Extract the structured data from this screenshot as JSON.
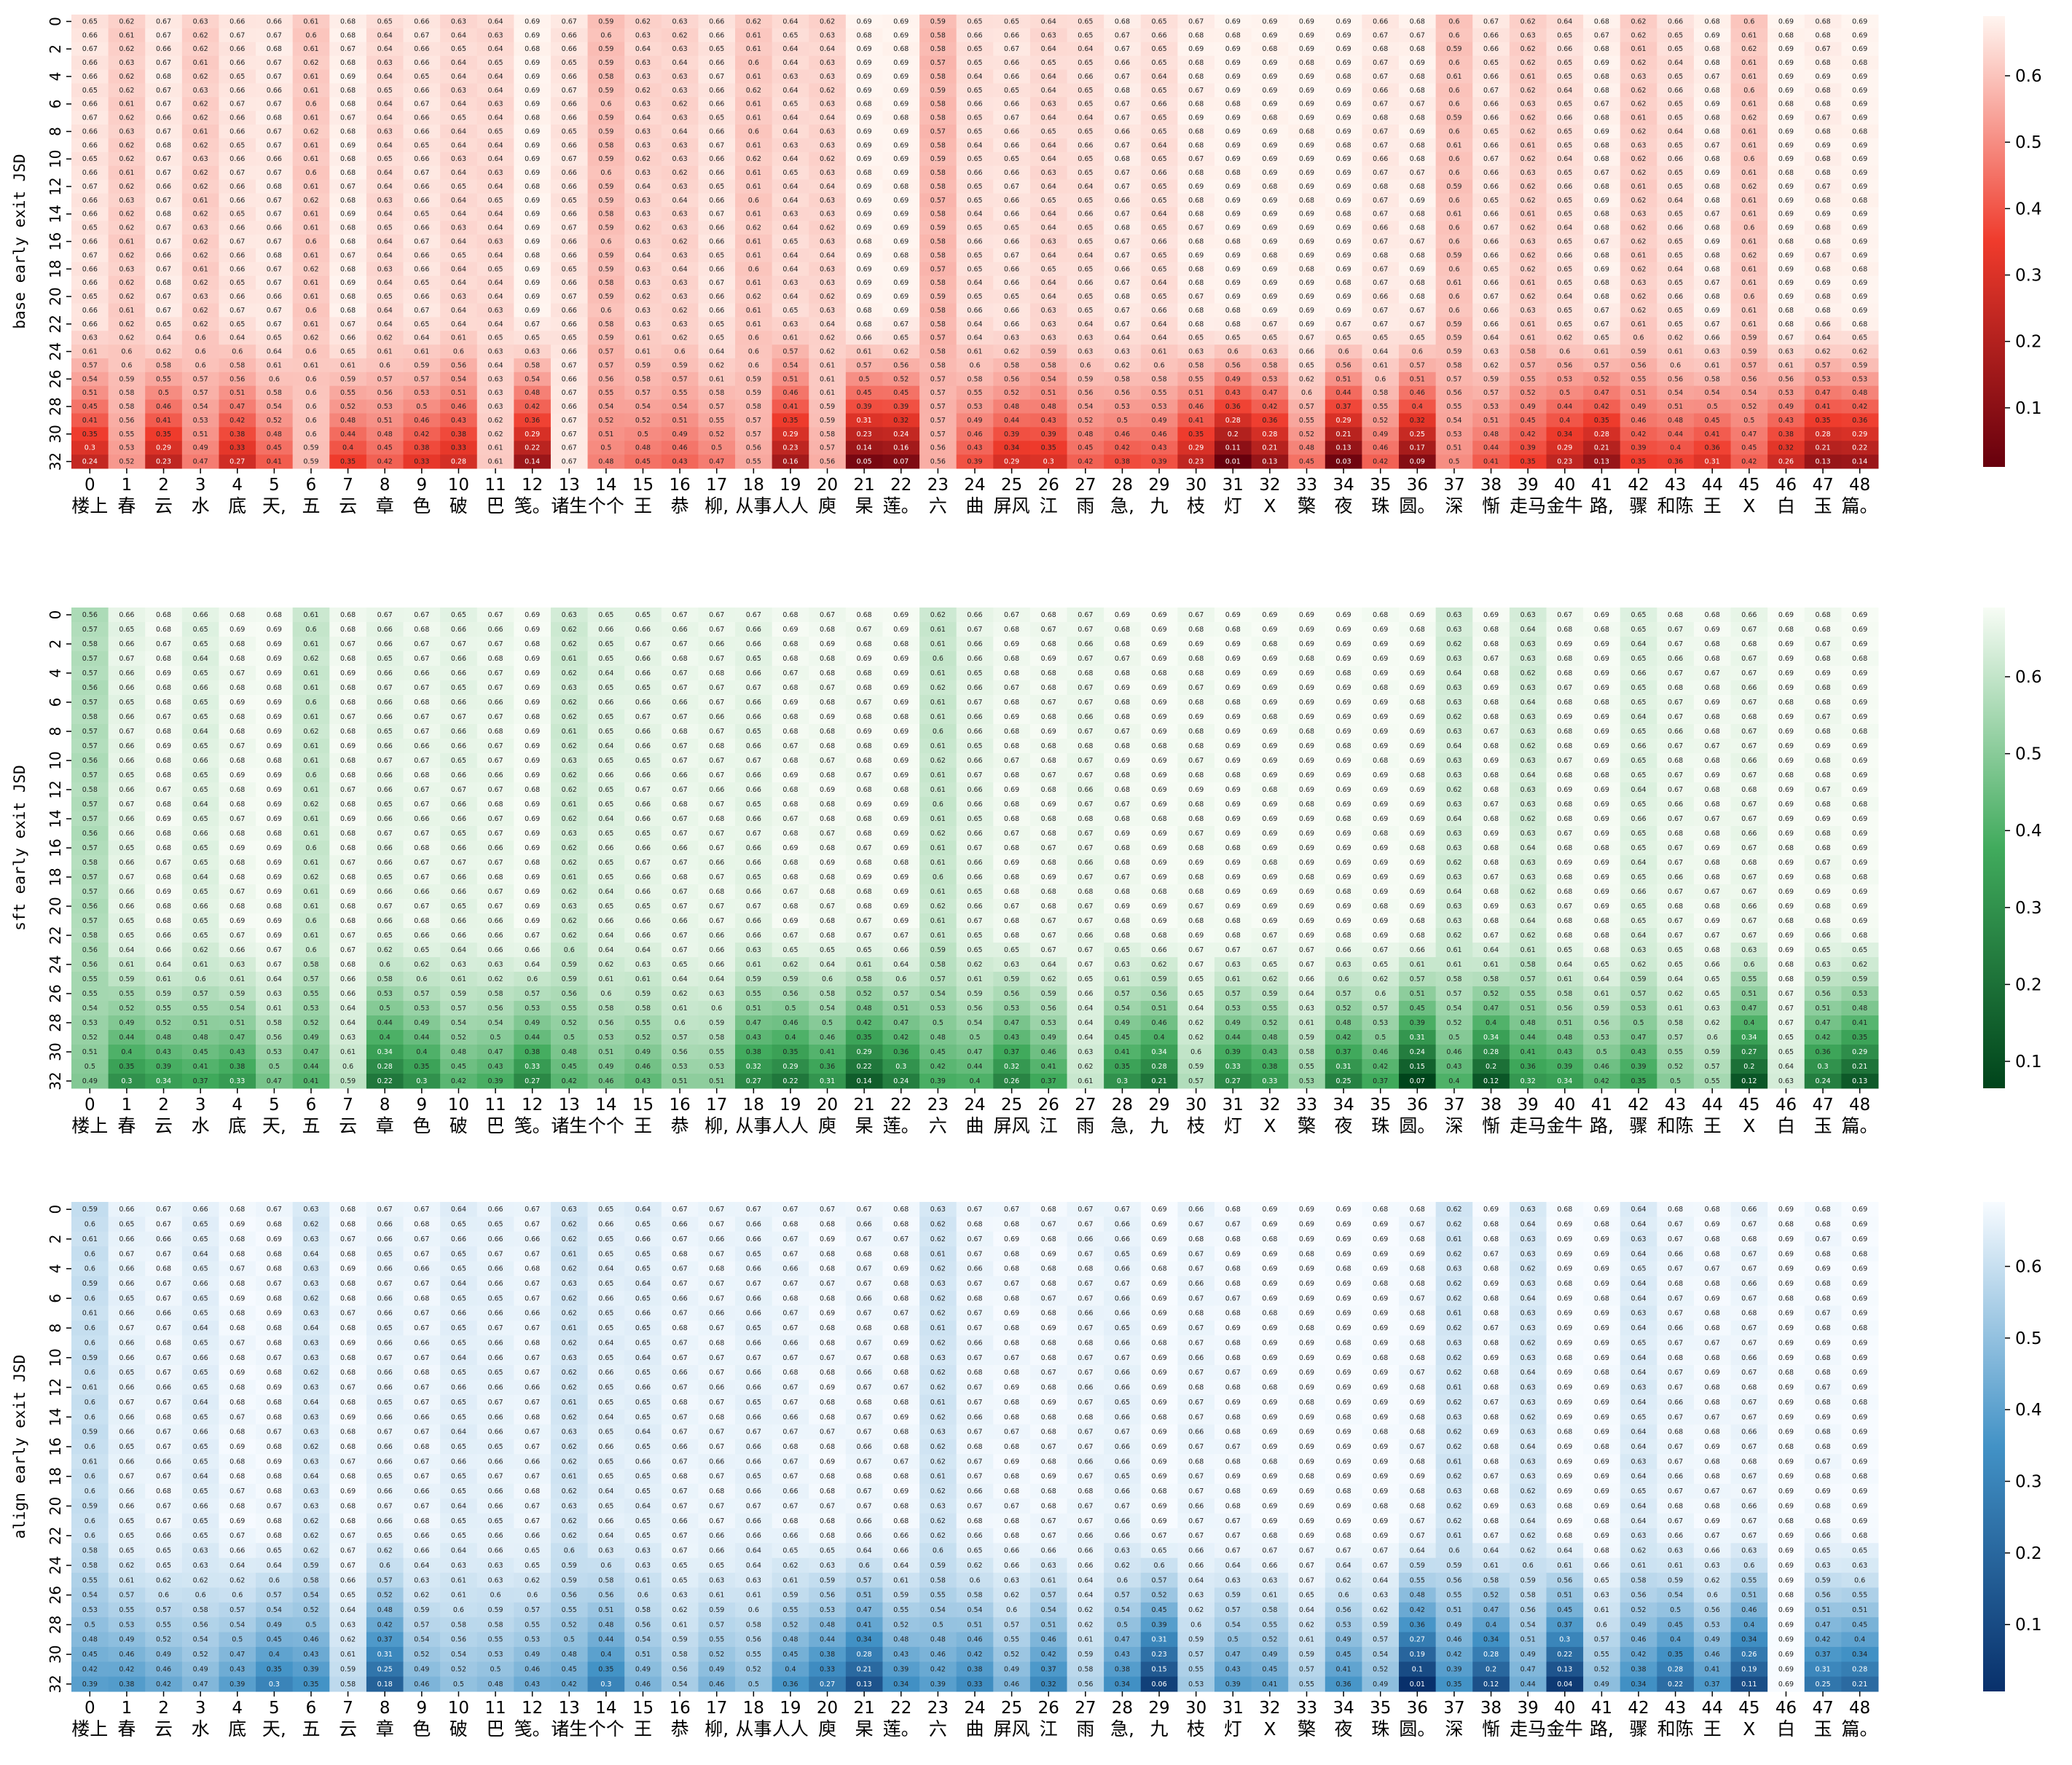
{
  "figure": {
    "panel_count": 3
  },
  "chart_data": [
    {
      "type": "heatmap",
      "ylabel": "base early exit JSD",
      "colormap": "Reds_r",
      "colors": {
        "low": "#67000d",
        "mid": "#ef3b2c",
        "high": "#fff5f0"
      },
      "colorbar_ticks": [
        0.1,
        0.2,
        0.3,
        0.4,
        0.5,
        0.6
      ],
      "vmin": 0.011,
      "vmax": 0.69,
      "row_baseline_first": [
        0.66,
        0.62,
        0.67,
        0.62,
        0.66,
        0.67,
        0.61,
        0.68,
        0.64,
        0.66,
        0.64,
        0.64,
        0.69,
        0.66,
        0.59,
        0.63,
        0.63,
        0.66,
        0.61,
        0.64,
        0.63,
        0.69,
        0.69,
        0.58,
        0.65,
        0.66,
        0.64,
        0.65,
        0.67,
        0.65,
        0.68,
        0.69,
        0.69,
        0.69,
        0.69,
        0.67,
        0.68,
        0.6,
        0.66,
        0.62,
        0.65,
        0.68,
        0.62,
        0.65,
        0.68,
        0.61,
        0.69,
        0.68,
        0.69
      ],
      "row_last": [
        0.24,
        0.52,
        0.23,
        0.47,
        0.27,
        0.41,
        0.59,
        0.35,
        0.42,
        0.33,
        0.28,
        0.61,
        0.14,
        0.67,
        0.48,
        0.45,
        0.43,
        0.47,
        0.55,
        0.16,
        0.56,
        0.054,
        0.072,
        0.56,
        0.39,
        0.29,
        0.3,
        0.42,
        0.38,
        0.39,
        0.23,
        0.011,
        0.13,
        0.45,
        0.033,
        0.42,
        0.087,
        0.5,
        0.41,
        0.35,
        0.23,
        0.13,
        0.35,
        0.36,
        0.31,
        0.42,
        0.26,
        0.13,
        0.14
      ]
    },
    {
      "type": "heatmap",
      "ylabel": "sft early exit JSD",
      "colormap": "Greens_r",
      "colors": {
        "low": "#00441b",
        "mid": "#41ab5d",
        "high": "#f7fcf5"
      },
      "colorbar_ticks": [
        0.1,
        0.2,
        0.3,
        0.4,
        0.5,
        0.6
      ],
      "vmin": 0.065,
      "vmax": 0.69,
      "row_baseline_first": [
        0.57,
        0.66,
        0.68,
        0.65,
        0.68,
        0.69,
        0.61,
        0.68,
        0.66,
        0.67,
        0.66,
        0.67,
        0.69,
        0.62,
        0.65,
        0.66,
        0.67,
        0.67,
        0.66,
        0.68,
        0.68,
        0.68,
        0.69,
        0.61,
        0.66,
        0.68,
        0.68,
        0.67,
        0.68,
        0.69,
        0.68,
        0.69,
        0.69,
        0.69,
        0.69,
        0.69,
        0.69,
        0.63,
        0.68,
        0.63,
        0.68,
        0.69,
        0.65,
        0.67,
        0.68,
        0.67,
        0.69,
        0.68,
        0.69
      ],
      "row_last": [
        0.49,
        0.3,
        0.34,
        0.37,
        0.33,
        0.47,
        0.41,
        0.59,
        0.22,
        0.3,
        0.42,
        0.39,
        0.27,
        0.42,
        0.46,
        0.43,
        0.51,
        0.51,
        0.27,
        0.22,
        0.31,
        0.14,
        0.24,
        0.39,
        0.4,
        0.26,
        0.37,
        0.61,
        0.3,
        0.21,
        0.57,
        0.27,
        0.33,
        0.53,
        0.25,
        0.37,
        0.065,
        0.4,
        0.12,
        0.32,
        0.34,
        0.42,
        0.35,
        0.5,
        0.55,
        0.12,
        0.63,
        0.24,
        0.13
      ]
    },
    {
      "type": "heatmap",
      "ylabel": "align early exit JSD",
      "colormap": "Blues_r",
      "colors": {
        "low": "#08306b",
        "mid": "#4292c6",
        "high": "#f7fbff"
      },
      "colorbar_ticks": [
        0.1,
        0.2,
        0.3,
        0.4,
        0.5,
        0.6
      ],
      "vmin": 0.0067,
      "vmax": 0.69,
      "row_baseline_first": [
        0.6,
        0.66,
        0.67,
        0.65,
        0.68,
        0.68,
        0.63,
        0.68,
        0.66,
        0.67,
        0.65,
        0.66,
        0.67,
        0.62,
        0.65,
        0.65,
        0.67,
        0.67,
        0.66,
        0.67,
        0.68,
        0.67,
        0.68,
        0.62,
        0.67,
        0.68,
        0.68,
        0.67,
        0.66,
        0.69,
        0.67,
        0.68,
        0.69,
        0.69,
        0.69,
        0.69,
        0.68,
        0.62,
        0.68,
        0.63,
        0.69,
        0.69,
        0.64,
        0.67,
        0.68,
        0.67,
        0.69,
        0.68,
        0.69
      ],
      "row_last": [
        0.39,
        0.38,
        0.42,
        0.47,
        0.39,
        0.3,
        0.35,
        0.58,
        0.18,
        0.46,
        0.5,
        0.48,
        0.43,
        0.42,
        0.3,
        0.46,
        0.54,
        0.46,
        0.5,
        0.36,
        0.27,
        0.13,
        0.34,
        0.39,
        0.33,
        0.46,
        0.32,
        0.56,
        0.34,
        0.061,
        0.53,
        0.39,
        0.41,
        0.55,
        0.36,
        0.49,
        0.0067,
        0.35,
        0.12,
        0.44,
        0.042,
        0.49,
        0.34,
        0.22,
        0.37,
        0.11,
        0.69,
        0.25,
        0.21
      ]
    }
  ],
  "axes": {
    "y_ticks": [
      "0",
      "2",
      "4",
      "6",
      "8",
      "10",
      "12",
      "14",
      "16",
      "18",
      "20",
      "22",
      "24",
      "26",
      "28",
      "30",
      "32"
    ],
    "x_ticks": [
      "0",
      "1",
      "2",
      "3",
      "4",
      "5",
      "6",
      "7",
      "8",
      "9",
      "10",
      "11",
      "12",
      "13",
      "14",
      "15",
      "16",
      "17",
      "18",
      "19",
      "20",
      "21",
      "22",
      "23",
      "24",
      "25",
      "26",
      "27",
      "28",
      "29",
      "30",
      "31",
      "32",
      "33",
      "34",
      "35",
      "36",
      "37",
      "38",
      "39",
      "40",
      "41",
      "42",
      "43",
      "44",
      "45",
      "46",
      "47",
      "48"
    ],
    "x_tokens": [
      "楼上",
      "春",
      "云",
      "水",
      "底",
      "天,",
      "五",
      "云",
      "章",
      "色",
      "破",
      "巴",
      "笺。",
      "诸生",
      "个个",
      "王",
      "恭",
      "柳,",
      "从事",
      "人人",
      "庾",
      "杲",
      "莲。",
      "六",
      "曲",
      "屏风",
      "江",
      "雨",
      "急,",
      "九",
      "枝",
      "灯",
      "X",
      "檠",
      "夜",
      "珠",
      "圆。",
      "深",
      "惭",
      "走马",
      "金牛",
      "路,",
      "骤",
      "和陈",
      "王",
      "X",
      "白",
      "玉",
      "篇。"
    ]
  }
}
